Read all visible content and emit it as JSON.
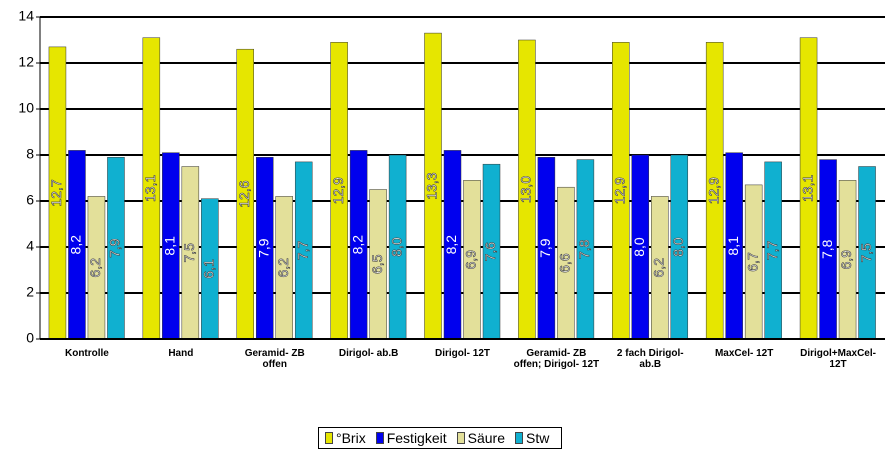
{
  "chart_data": {
    "type": "bar",
    "categories": [
      "Kontrolle",
      "Hand",
      "Geramid- ZB offen",
      "Dirigol- ab.B",
      "Dirigol- 12T",
      "Geramid- ZB offen; Dirigol- 12T",
      "2 fach Dirigol- ab.B",
      "MaxCel- 12T",
      "Dirigol+MaxCel- 12T"
    ],
    "series": [
      {
        "name": "°Brix",
        "color": "#e6e600",
        "values": [
          12.7,
          13.1,
          12.6,
          12.9,
          13.3,
          13.0,
          12.9,
          12.9,
          13.1
        ],
        "value_labels": [
          "12,7",
          "13,1",
          "12,6",
          "12,9",
          "13,3",
          "13,0",
          "12,9",
          "12,9",
          "13,1"
        ]
      },
      {
        "name": "Festigkeit",
        "color": "#0000ee",
        "values": [
          8.2,
          8.1,
          7.9,
          8.2,
          8.2,
          7.9,
          8.0,
          8.1,
          7.8
        ],
        "value_labels": [
          "8,2",
          "8,1",
          "7,9",
          "8,2",
          "8,2",
          "7,9",
          "8,0",
          "8,1",
          "7,8"
        ]
      },
      {
        "name": "Säure",
        "color": "#e3e09a",
        "values": [
          6.2,
          7.5,
          6.2,
          6.5,
          6.9,
          6.6,
          6.2,
          6.7,
          6.9
        ],
        "value_labels": [
          "6,2",
          "7,5",
          "6,2",
          "6,5",
          "6,9",
          "6,6",
          "6,2",
          "6,7",
          "6,9"
        ]
      },
      {
        "name": "Stw",
        "color": "#10b0d0",
        "values": [
          7.9,
          6.1,
          7.7,
          8.0,
          7.6,
          7.8,
          8.0,
          7.7,
          7.5
        ],
        "value_labels": [
          "7,9",
          "6,1",
          "7,7",
          "8,0",
          "7,6",
          "7,8",
          "8,0",
          "7,7",
          "7,5"
        ]
      }
    ],
    "ylim": [
      0,
      14
    ],
    "yticks": [
      0,
      2,
      4,
      6,
      8,
      10,
      12,
      14
    ],
    "grid": true,
    "legend": "bottom"
  }
}
